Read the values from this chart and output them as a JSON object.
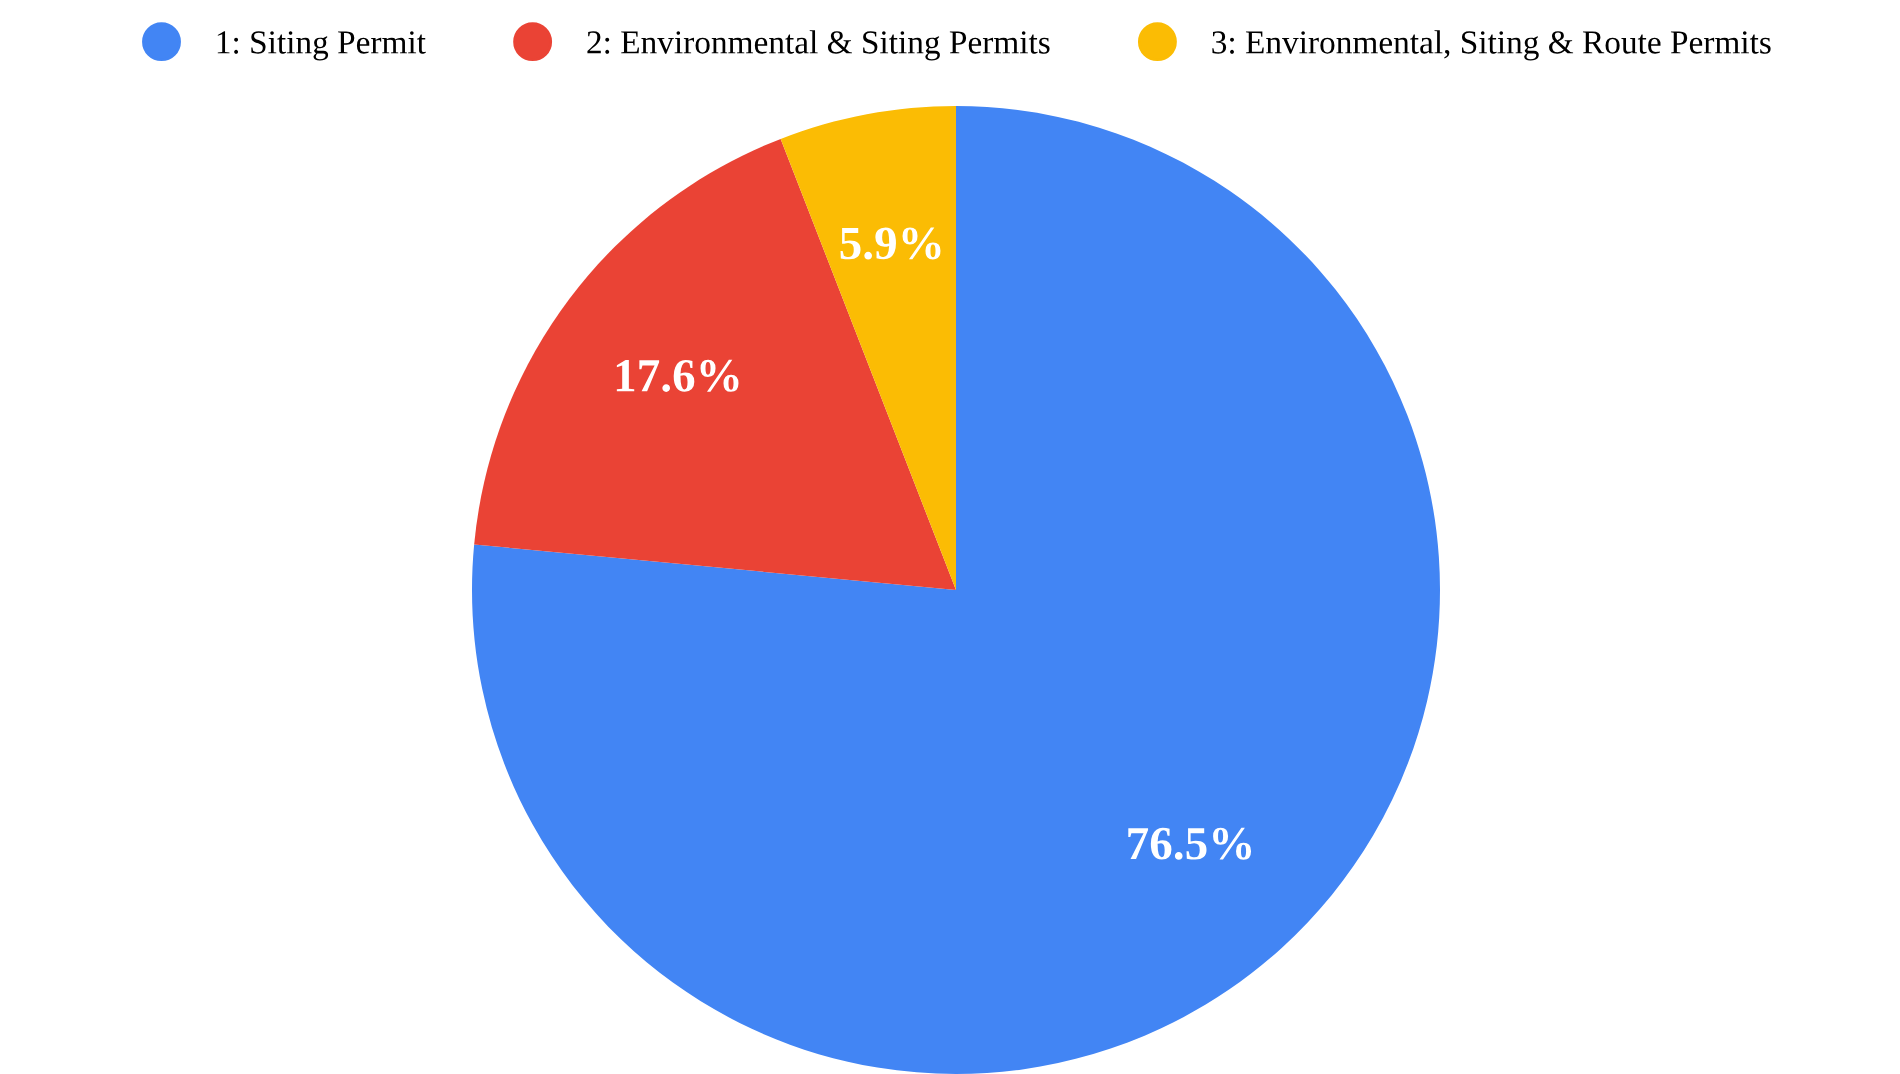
{
  "chart_data": {
    "type": "pie",
    "categories": [
      "1: Siting Permit",
      "2: Environmental & Siting Permits",
      "3: Environmental, Siting & Route Permits"
    ],
    "values": [
      76.5,
      17.6,
      5.9
    ],
    "colors": [
      "#4285f4",
      "#ea4335",
      "#fbbc04"
    ],
    "value_labels": [
      "76.5%",
      "17.6%",
      "5.9%"
    ],
    "legend": "top"
  }
}
